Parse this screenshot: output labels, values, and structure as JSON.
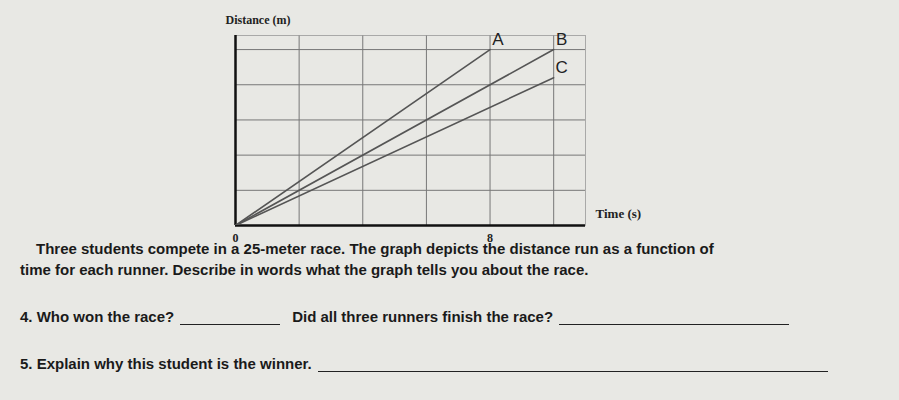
{
  "chart_data": {
    "type": "line",
    "x_label": "Time (s)",
    "y_label": "Distance (m)",
    "xlim": [
      0,
      11
    ],
    "ylim": [
      0,
      27
    ],
    "xticks": [
      0,
      8
    ],
    "yticks": [],
    "tick_labels": "x",
    "grid": true,
    "xgrid": [
      2,
      4,
      6,
      8,
      10
    ],
    "ygrid": [
      5,
      10,
      15,
      20,
      25
    ],
    "series": [
      {
        "name": "A",
        "color": "#555555",
        "x": [
          0,
          8
        ],
        "values": [
          0,
          25
        ]
      },
      {
        "name": "B",
        "color": "#555555",
        "x": [
          0,
          10
        ],
        "values": [
          0,
          25
        ]
      },
      {
        "name": "C",
        "color": "#555555",
        "x": [
          0,
          10
        ],
        "values": [
          0,
          21
        ]
      }
    ]
  },
  "document": {
    "paragraph": [
      "Three students compete in a 25-meter race. The graph depicts the distance run as a function of",
      "time for each runner. Describe in words what the graph tells you about the race."
    ],
    "questions": [
      [
        "4. Who won the race?",
        "Did all three runners finish the race?"
      ],
      [
        "5. Explain why this student is the winner."
      ]
    ]
  }
}
